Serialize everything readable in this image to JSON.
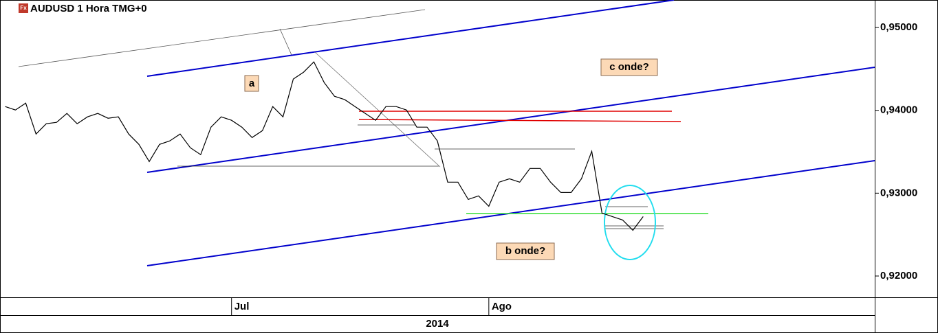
{
  "chart_data": {
    "type": "line",
    "title": "AUDUSD 1 Hora TMG+0",
    "symbol_icon": "Fx",
    "categories": [
      null,
      null,
      null,
      null,
      null,
      null,
      null,
      null,
      null,
      null,
      null,
      null,
      null,
      null,
      null,
      null,
      null,
      null,
      null,
      null,
      null,
      null,
      "Jul",
      null,
      null,
      null,
      null,
      null,
      null,
      null,
      null,
      null,
      null,
      null,
      null,
      null,
      null,
      null,
      null,
      null,
      null,
      null,
      null,
      null,
      null,
      null,
      null,
      "Ago",
      null,
      null,
      null,
      null,
      null,
      null,
      null,
      null,
      null,
      null,
      null,
      null,
      null,
      null,
      null,
      null,
      null,
      null,
      null,
      null,
      null,
      null,
      null,
      null,
      null,
      null,
      null,
      null,
      null,
      null,
      null,
      null,
      null,
      null,
      null,
      null,
      null
    ],
    "x_period": "2014",
    "series": [
      {
        "color": "#000000",
        "values": [
          0.94046,
          0.94004,
          0.94087,
          0.93714,
          0.93838,
          0.93855,
          0.93963,
          0.93838,
          0.93921,
          0.93963,
          0.93905,
          0.93921,
          0.93714,
          0.93589,
          0.93382,
          0.93589,
          0.93631,
          0.93714,
          0.93548,
          0.93465,
          0.93797,
          0.93921,
          0.9388,
          0.93797,
          0.93672,
          0.93755,
          0.94046,
          0.93921,
          0.94378,
          0.94461,
          0.94585,
          0.94336,
          0.9417,
          0.94129,
          0.94046,
          0.93963,
          0.9388,
          0.94046,
          0.94046,
          0.94004,
          0.93797,
          0.93797,
          0.93631,
          0.93133,
          0.93133,
          0.92925,
          0.92967,
          0.92842,
          0.93133,
          0.93174,
          0.93133,
          0.93299,
          0.93299,
          0.93133,
          0.93008,
          0.93008,
          0.93174,
          0.93506,
          0.92759,
          0.92718,
          0.92676,
          0.92552,
          0.92718,
          null,
          null,
          null,
          null,
          null,
          null,
          null,
          null,
          null,
          null,
          null,
          null,
          null,
          null,
          null,
          null,
          null,
          null,
          null,
          null,
          null,
          null
        ]
      }
    ],
    "ylim": [
      0.91743,
      0.95332
    ],
    "yticks": [
      {
        "value": 0.92,
        "label": "0,92000"
      },
      {
        "value": 0.93,
        "label": "0,93000"
      },
      {
        "value": 0.94,
        "label": "0,94000"
      },
      {
        "value": 0.95,
        "label": "0,95000"
      }
    ],
    "annotations": [
      {
        "text": "a"
      },
      {
        "text": "c onde?"
      },
      {
        "text": "b onde?"
      }
    ]
  }
}
